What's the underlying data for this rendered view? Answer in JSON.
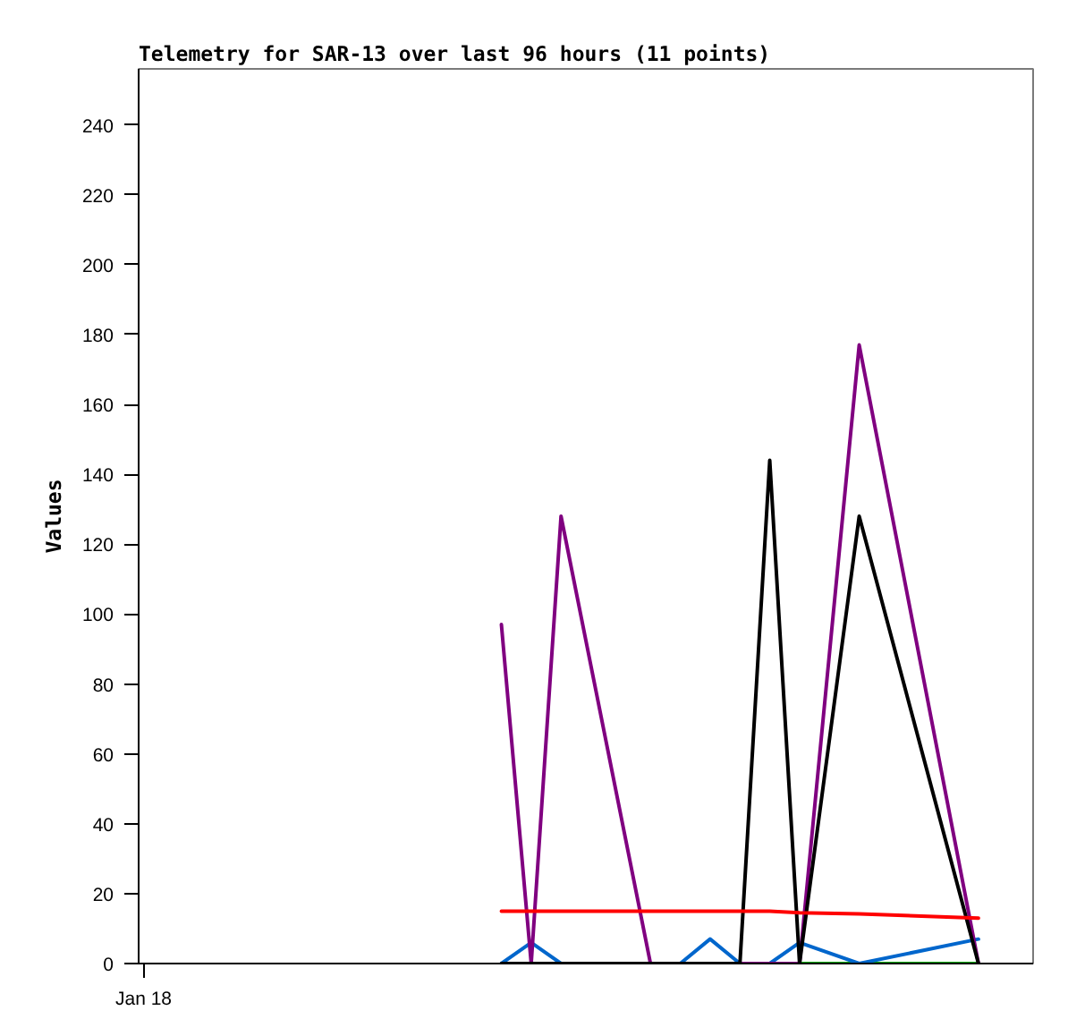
{
  "chart_data": {
    "type": "line",
    "title": "Telemetry for SAR-13 over last 96 hours (11 points)",
    "ylabel": "Values",
    "categories": [
      "Jan 18",
      null,
      null,
      null,
      null,
      null,
      null,
      null,
      null,
      null,
      null,
      null,
      null,
      null,
      null,
      null,
      null,
      null,
      null,
      null,
      null,
      null,
      null,
      null,
      null,
      null,
      null,
      null,
      null,
      null,
      null,
      null,
      null,
      null,
      null,
      null,
      null,
      null,
      null,
      null,
      null,
      null,
      null,
      null,
      null,
      null,
      null,
      null,
      null,
      null,
      null,
      null,
      null,
      null,
      null,
      null,
      null,
      null,
      null,
      null,
      null,
      null,
      null,
      null,
      null,
      null,
      null,
      null,
      null,
      null,
      null,
      null,
      null,
      null,
      null,
      null,
      null,
      null,
      null,
      null,
      null,
      null,
      null,
      null,
      null,
      null,
      null,
      null,
      null,
      null
    ],
    "ylim": [
      0,
      256
    ],
    "yticks": [
      0,
      20,
      40,
      60,
      80,
      100,
      120,
      140,
      160,
      180,
      200,
      220,
      240
    ],
    "grid": false,
    "line_style": "solid",
    "series": [
      {
        "color": "#00aa00",
        "values": [
          null,
          null,
          null,
          null,
          null,
          null,
          null,
          null,
          null,
          null,
          null,
          null,
          null,
          null,
          null,
          null,
          null,
          null,
          null,
          null,
          null,
          null,
          null,
          null,
          null,
          null,
          null,
          null,
          null,
          null,
          null,
          null,
          null,
          null,
          null,
          null,
          null,
          null,
          null,
          null,
          null,
          null,
          null,
          null,
          null,
          null,
          null,
          null,
          null,
          null,
          null,
          null,
          null,
          null,
          null,
          null,
          null,
          null,
          null,
          null,
          null,
          null,
          null,
          null,
          null,
          null,
          0,
          null,
          null,
          null,
          null,
          null,
          0,
          null,
          null,
          null,
          null,
          null,
          null,
          null,
          null,
          null,
          null,
          null,
          0,
          null,
          null,
          null,
          null,
          null
        ]
      },
      {
        "color": "#0066cc",
        "values": [
          null,
          null,
          null,
          null,
          null,
          null,
          null,
          null,
          null,
          null,
          null,
          null,
          null,
          null,
          null,
          null,
          null,
          null,
          null,
          null,
          null,
          null,
          null,
          null,
          null,
          null,
          null,
          null,
          null,
          null,
          null,
          null,
          null,
          null,
          null,
          null,
          0,
          null,
          null,
          6,
          null,
          null,
          0,
          null,
          null,
          null,
          null,
          null,
          null,
          null,
          null,
          null,
          null,
          null,
          0,
          null,
          null,
          7,
          null,
          null,
          0,
          null,
          null,
          0,
          null,
          null,
          6,
          null,
          null,
          null,
          null,
          null,
          0,
          null,
          null,
          null,
          null,
          null,
          null,
          null,
          null,
          null,
          null,
          null,
          7,
          null,
          null,
          null,
          null,
          null
        ]
      },
      {
        "color": "#800080",
        "values": [
          null,
          null,
          null,
          null,
          null,
          null,
          null,
          null,
          null,
          null,
          null,
          null,
          null,
          null,
          null,
          null,
          null,
          null,
          null,
          null,
          null,
          null,
          null,
          null,
          null,
          null,
          null,
          null,
          null,
          null,
          null,
          null,
          null,
          null,
          null,
          null,
          97,
          null,
          null,
          0,
          null,
          null,
          128,
          null,
          null,
          null,
          null,
          null,
          null,
          null,
          null,
          0,
          null,
          null,
          null,
          null,
          null,
          null,
          null,
          null,
          0,
          null,
          null,
          0,
          null,
          null,
          0,
          null,
          null,
          null,
          null,
          null,
          177,
          null,
          null,
          null,
          null,
          null,
          null,
          null,
          null,
          null,
          null,
          null,
          0,
          null,
          null,
          null,
          null,
          null
        ]
      },
      {
        "color": "#000000",
        "values": [
          null,
          null,
          null,
          null,
          null,
          null,
          null,
          null,
          null,
          null,
          null,
          null,
          null,
          null,
          null,
          null,
          null,
          null,
          null,
          null,
          null,
          null,
          null,
          null,
          null,
          null,
          null,
          null,
          null,
          null,
          null,
          null,
          null,
          null,
          null,
          null,
          0,
          null,
          null,
          0,
          null,
          null,
          0,
          null,
          null,
          null,
          null,
          null,
          null,
          null,
          null,
          0,
          null,
          null,
          0,
          null,
          null,
          0,
          null,
          null,
          0,
          null,
          null,
          144,
          null,
          null,
          0,
          null,
          null,
          null,
          null,
          null,
          128,
          null,
          null,
          null,
          null,
          null,
          null,
          null,
          null,
          null,
          null,
          null,
          0,
          null,
          null,
          null,
          null,
          null
        ]
      },
      {
        "color": "#ff0000",
        "values": [
          null,
          null,
          null,
          null,
          null,
          null,
          null,
          null,
          null,
          null,
          null,
          null,
          null,
          null,
          null,
          null,
          null,
          null,
          null,
          null,
          null,
          null,
          null,
          null,
          null,
          null,
          null,
          null,
          null,
          null,
          null,
          null,
          null,
          null,
          null,
          null,
          15,
          null,
          null,
          15,
          null,
          null,
          15,
          null,
          null,
          null,
          null,
          null,
          null,
          null,
          null,
          15,
          null,
          null,
          15,
          null,
          null,
          15,
          null,
          null,
          15,
          null,
          null,
          15,
          null,
          null,
          14.5,
          null,
          null,
          null,
          null,
          null,
          14.2,
          null,
          null,
          null,
          null,
          null,
          null,
          null,
          null,
          null,
          null,
          null,
          13,
          null,
          null,
          null,
          null,
          null
        ]
      }
    ]
  }
}
